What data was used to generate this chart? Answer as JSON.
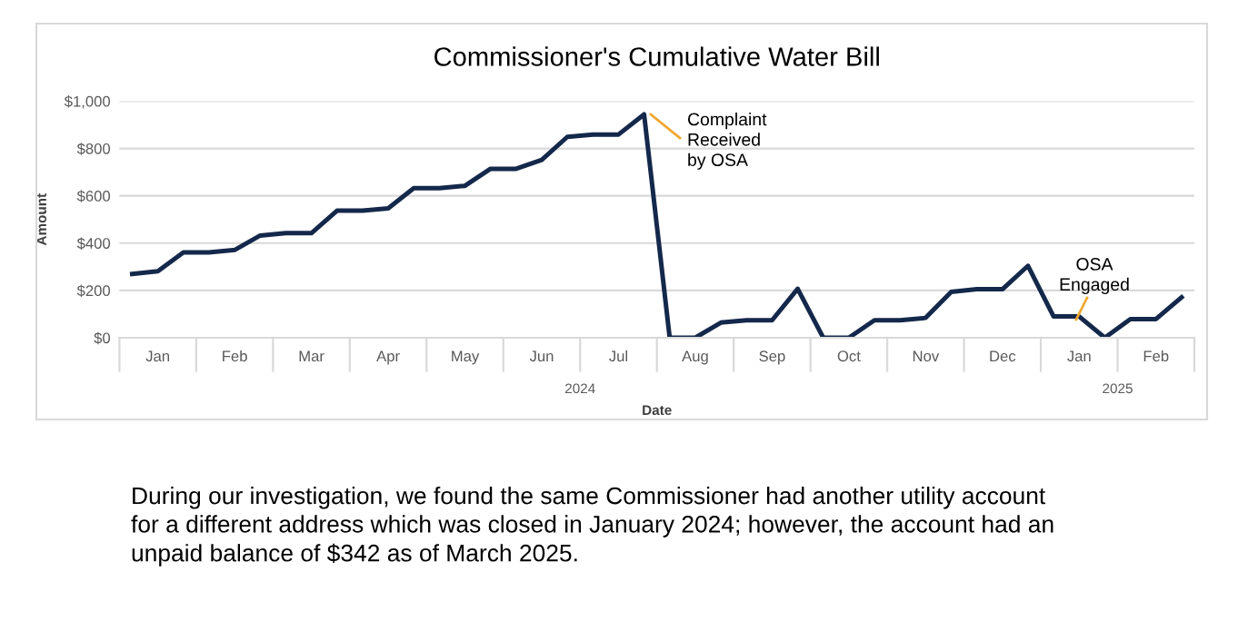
{
  "chart_data": {
    "type": "line",
    "title": "Commissioner's Cumulative Water Bill",
    "xlabel": "Date",
    "ylabel": "Amount",
    "categories": [
      null,
      "Jan",
      null,
      null,
      "Feb",
      null,
      null,
      "Mar",
      null,
      null,
      "Apr",
      null,
      null,
      "May",
      null,
      null,
      "Jun",
      null,
      null,
      "Jul",
      null,
      null,
      "Aug",
      null,
      null,
      "Sep",
      null,
      null,
      "Oct",
      null,
      null,
      "Nov",
      null,
      null,
      "Dec",
      null,
      null,
      "Jan",
      null,
      null,
      "Feb",
      null
    ],
    "series": [
      {
        "color": "#14284b",
        "values": [
          270,
          281,
          361,
          361,
          371,
          432,
          442,
          442,
          537,
          537,
          547,
          632,
          632,
          642,
          714,
          714,
          752,
          849,
          859,
          859,
          944,
          0,
          0,
          64,
          74,
          74,
          207,
          0,
          0,
          74,
          74,
          84,
          194,
          205,
          205,
          304,
          90,
          90,
          0,
          79,
          79,
          171
        ]
      }
    ],
    "ylim": [
      0,
      1000
    ],
    "yticks": [
      {
        "value": 0,
        "label": "$0"
      },
      {
        "value": 200,
        "label": "$200"
      },
      {
        "value": 400,
        "label": "$400"
      },
      {
        "value": 600,
        "label": "$600"
      },
      {
        "value": 800,
        "label": "$800"
      },
      {
        "value": 1000,
        "label": "$1,000"
      }
    ],
    "grid": "y",
    "legend": false,
    "marker": "none",
    "line_style": "solid",
    "annotations": [
      "Complaint\nReceived\nby OSA",
      "OSA\nEngaged",
      "2024",
      "2025",
      "During our investigation, we found the same Commissioner had another utility account\nfor a different address which was closed in January 2024; however, the account had an\nunpaid balance of $342 as of March 2025."
    ]
  }
}
